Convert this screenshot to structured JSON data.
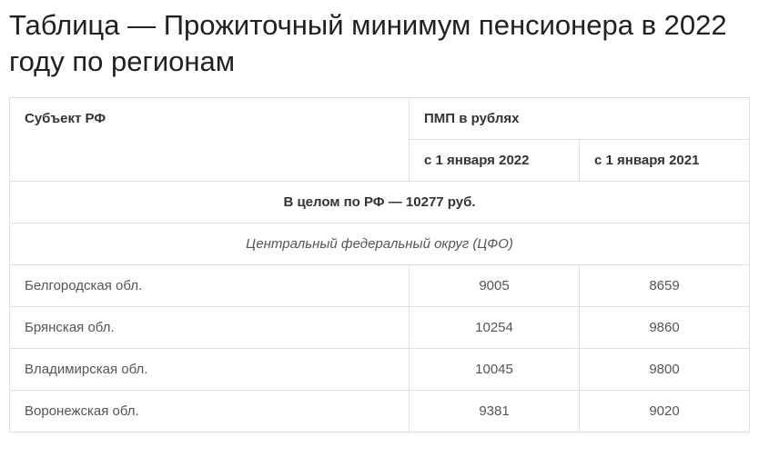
{
  "title": "Таблица — Прожиточный минимум пенсионера в 2022 году по регионам",
  "table": {
    "columns": {
      "subject": "Субъект РФ",
      "pmp": "ПМП в рублях",
      "col2022": "с 1 января 2022",
      "col2021": "с 1 января 2021"
    },
    "total_row": "В целом по РФ — 10277 руб.",
    "group_row": "Центральный федеральный округ (ЦФО)",
    "rows": [
      {
        "region": "Белгородская обл.",
        "v2022": "9005",
        "v2021": "8659"
      },
      {
        "region": "Брянская обл.",
        "v2022": "10254",
        "v2021": "9860"
      },
      {
        "region": "Владимирская обл.",
        "v2022": "10045",
        "v2021": "9800"
      },
      {
        "region": "Воронежская обл.",
        "v2022": "9381",
        "v2021": "9020"
      }
    ]
  },
  "style": {
    "background_color": "#ffffff",
    "border_color": "#e0e0e0",
    "title_fontsize": 31,
    "title_color": "#212121",
    "header_fontsize": 15,
    "header_weight": 700,
    "cell_fontsize": 15,
    "text_color": "#444444"
  }
}
